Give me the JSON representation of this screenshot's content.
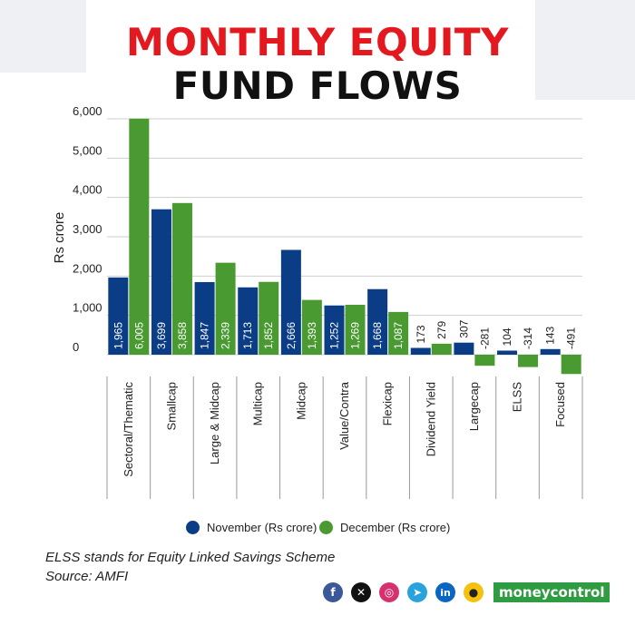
{
  "title": {
    "line1": "MONTHLY EQUITY",
    "line2": "FUND FLOWS"
  },
  "colors": {
    "november": "#0b3d86",
    "december": "#4a9a32",
    "title_accent": "#e4191f"
  },
  "chart_data": {
    "type": "bar",
    "title": "MONTHLY EQUITY FUND FLOWS",
    "xlabel": "",
    "ylabel": "Rs crore",
    "ylim": [
      -600,
      6200
    ],
    "yticks": [
      0,
      1000,
      2000,
      3000,
      4000,
      5000,
      6000
    ],
    "ytick_labels": [
      "0",
      "1,000",
      "2,000",
      "3,000",
      "4,000",
      "5,000",
      "6,000"
    ],
    "grid": true,
    "legend_position": "bottom",
    "categories": [
      "Sectoral/Thematic",
      "Smallcap",
      "Large & Midcap",
      "Multicap",
      "Midcap",
      "Value/Contra",
      "Flexicap",
      "Dividend Yield",
      "Largecap",
      "ELSS",
      "Focused"
    ],
    "series": [
      {
        "name": "November (Rs crore)",
        "values": [
          1965,
          3699,
          1847,
          1713,
          2666,
          1252,
          1668,
          173,
          307,
          104,
          143
        ],
        "labels": [
          "1,965",
          "3,699",
          "1,847",
          "1,713",
          "2,666",
          "1,252",
          "1,668",
          "173",
          "307",
          "104",
          "143"
        ]
      },
      {
        "name": "December (Rs crore)",
        "values": [
          6005,
          3858,
          2339,
          1852,
          1393,
          1269,
          1087,
          279,
          -281,
          -314,
          -491
        ],
        "labels": [
          "6,005",
          "3,858",
          "2,339",
          "1,852",
          "1,393",
          "1,269",
          "1,087",
          "279",
          "-281",
          "-314",
          "-491"
        ]
      }
    ]
  },
  "footnotes": {
    "note": "ELSS stands for Equity Linked Savings Scheme",
    "source": "Source: AMFI"
  },
  "social": {
    "icons": [
      "facebook-icon",
      "x-icon",
      "instagram-icon",
      "telegram-icon",
      "linkedin-icon",
      "koo-icon"
    ],
    "brand": "moneycontrol"
  }
}
